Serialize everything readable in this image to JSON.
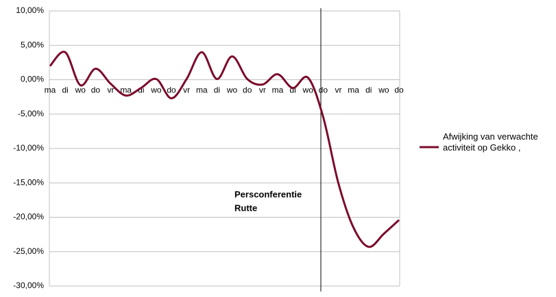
{
  "chart_data": {
    "type": "line",
    "categories": [
      "ma",
      "di",
      "wo",
      "do",
      "vr",
      "ma",
      "di",
      "wo",
      "do",
      "vr",
      "ma",
      "di",
      "wo",
      "do",
      "vr",
      "ma",
      "di",
      "wo",
      "do",
      "vr",
      "ma",
      "di",
      "wo",
      "do"
    ],
    "series": [
      {
        "name": "Afwijking van verwachte activiteit op Gekko   ,",
        "color": "#7b0a2a",
        "values": [
          2.0,
          4.0,
          -0.8,
          1.6,
          -0.6,
          -2.3,
          -1.2,
          0.1,
          -2.7,
          0.1,
          4.0,
          0.1,
          3.4,
          0.1,
          -0.7,
          0.8,
          -1.2,
          0.3,
          -5.4,
          -15.0,
          -21.5,
          -24.3,
          -22.4,
          -20.4
        ]
      }
    ],
    "ylim": [
      -30,
      10
    ],
    "yticks": [
      {
        "value": 10,
        "label": "10,00%"
      },
      {
        "value": 5,
        "label": "5,00%"
      },
      {
        "value": 0,
        "label": "0,00%"
      },
      {
        "value": -5,
        "label": "-5,00%"
      },
      {
        "value": -10,
        "label": "-10,00%"
      },
      {
        "value": -15,
        "label": "-15,00%"
      },
      {
        "value": -20,
        "label": "-20,00%"
      },
      {
        "value": -25,
        "label": "-25,00%"
      },
      {
        "value": -30,
        "label": "-30,00%"
      }
    ],
    "grid": true,
    "annotation_lines": [
      "Persconferentie",
      "Rutte"
    ]
  }
}
